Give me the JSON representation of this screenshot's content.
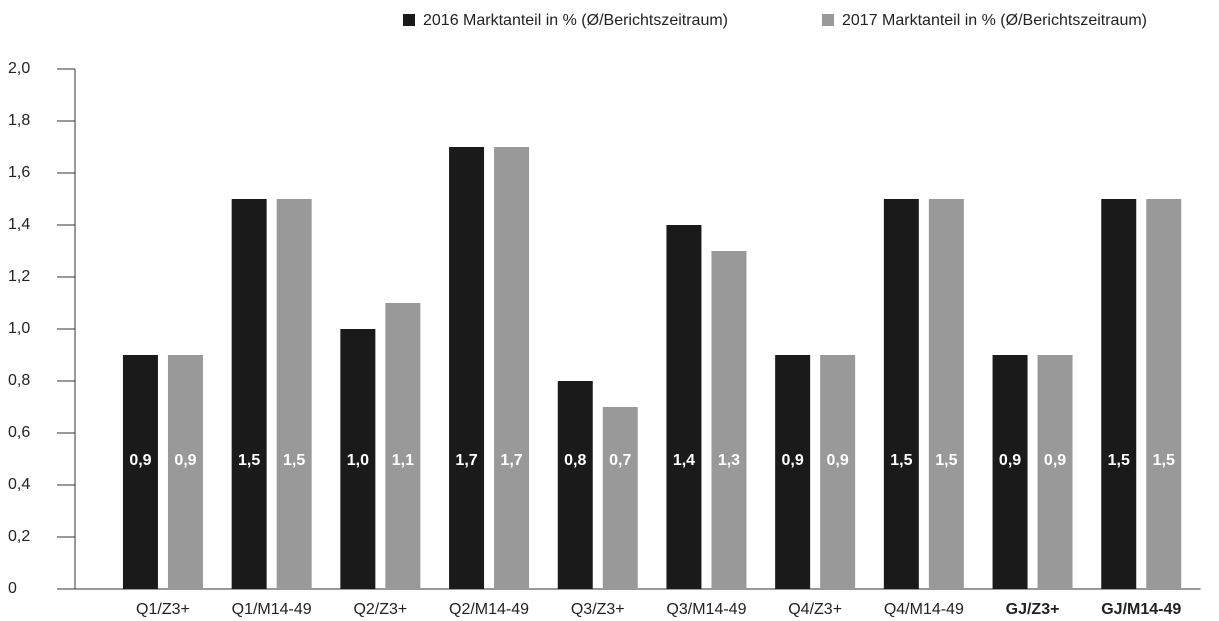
{
  "chart_data": {
    "type": "bar",
    "categories": [
      "Q1/Z3+",
      "Q1/M14-49",
      "Q2/Z3+",
      "Q2/M14-49",
      "Q3/Z3+",
      "Q3/M14-49",
      "Q4/Z3+",
      "Q4/M14-49",
      "GJ/Z3+",
      "GJ/M14-49"
    ],
    "series": [
      {
        "name": "2016 Marktanteil in % (Ø/Berichtszeitraum)",
        "color": "#1a1a1a",
        "values": [
          0.9,
          1.5,
          1.0,
          1.7,
          0.8,
          1.4,
          0.9,
          1.5,
          0.9,
          1.5
        ],
        "value_labels": [
          "0,9",
          "1,5",
          "1,0",
          "1,7",
          "0,8",
          "1,4",
          "0,9",
          "1,5",
          "0,9",
          "1,5"
        ]
      },
      {
        "name": "2017 Marktanteil in % (Ø/Berichtszeitraum)",
        "color": "#999999",
        "values": [
          0.9,
          1.5,
          1.1,
          1.7,
          0.7,
          1.3,
          0.9,
          1.5,
          0.9,
          1.5
        ],
        "value_labels": [
          "0,9",
          "1,5",
          "1,1",
          "1,7",
          "0,7",
          "1,3",
          "0,9",
          "1,5",
          "0,9",
          "1,5"
        ]
      }
    ],
    "ylim": [
      0,
      2
    ],
    "yticks": [
      0,
      {
        "value": 0.2,
        "label": "0,2"
      },
      {
        "value": 0.4,
        "label": "0,4"
      },
      {
        "value": 0.6,
        "label": "0,6"
      },
      {
        "value": 0.8,
        "label": "0,8"
      },
      {
        "value": 1.0,
        "label": "1,0"
      },
      {
        "value": 1.2,
        "label": "1,2"
      },
      {
        "value": 1.4,
        "label": "1,4"
      },
      {
        "value": 1.6,
        "label": "1,6"
      },
      {
        "value": 1.8,
        "label": "1,8"
      },
      {
        "value": 2.0,
        "label": "2,0"
      }
    ],
    "legend": "top-right"
  }
}
